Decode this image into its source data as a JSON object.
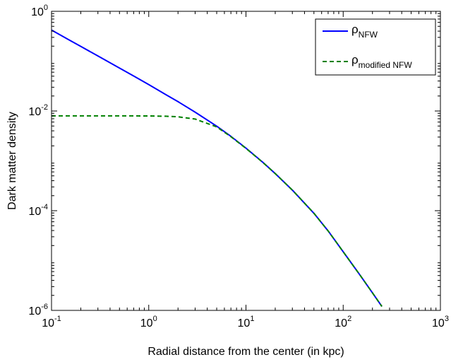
{
  "chart_data": {
    "type": "line",
    "xscale": "log",
    "yscale": "log",
    "xlim": [
      0.1,
      1000
    ],
    "ylim": [
      1e-06,
      1
    ],
    "xlabel": "Radial distance from the center (in kpc)",
    "ylabel": "Dark matter density",
    "x_ticks": [
      {
        "base": "10",
        "exp": "-1",
        "value": 0.1
      },
      {
        "base": "10",
        "exp": "0",
        "value": 1
      },
      {
        "base": "10",
        "exp": "1",
        "value": 10
      },
      {
        "base": "10",
        "exp": "2",
        "value": 100
      },
      {
        "base": "10",
        "exp": "3",
        "value": 1000
      }
    ],
    "y_ticks": [
      {
        "base": "10",
        "exp": "-6",
        "value": 1e-06
      },
      {
        "base": "10",
        "exp": "-4",
        "value": 0.0001
      },
      {
        "base": "10",
        "exp": "-2",
        "value": 0.01
      },
      {
        "base": "10",
        "exp": "0",
        "value": 1
      }
    ],
    "grid": false,
    "legend_position": "top-right",
    "series": [
      {
        "name_main": "ρ",
        "name_sub": "NFW",
        "color": "#0000ff",
        "style": "solid",
        "x": [
          0.1,
          0.15,
          0.2,
          0.3,
          0.5,
          0.7,
          1,
          1.5,
          2,
          3,
          5,
          7,
          10,
          15,
          20,
          30,
          50,
          70,
          100,
          150,
          200,
          250
        ],
        "y": [
          0.42,
          0.27,
          0.198,
          0.127,
          0.0727,
          0.0504,
          0.0339,
          0.0213,
          0.0154,
          0.00949,
          0.00496,
          0.0031,
          0.0018,
          0.000925,
          0.000556,
          0.000259,
          8.88e-05,
          3.93e-05,
          1.5e-05,
          5.01e-06,
          2.25e-06,
          1.2e-06
        ]
      },
      {
        "name_main": "ρ",
        "name_sub": "modified NFW",
        "color": "#008000",
        "style": "dashed",
        "x": [
          0.1,
          0.15,
          0.2,
          0.3,
          0.5,
          0.7,
          1,
          1.5,
          2,
          3,
          5,
          7,
          10,
          15,
          20,
          30,
          50,
          70,
          100,
          150,
          200,
          250
        ],
        "y": [
          0.008,
          0.008,
          0.008,
          0.008,
          0.008,
          0.00798,
          0.00795,
          0.00785,
          0.00765,
          0.0069,
          0.0048,
          0.00305,
          0.00178,
          0.00092,
          0.000555,
          0.000259,
          8.88e-05,
          3.93e-05,
          1.5e-05,
          5.01e-06,
          2.25e-06,
          1.2e-06
        ]
      }
    ]
  }
}
